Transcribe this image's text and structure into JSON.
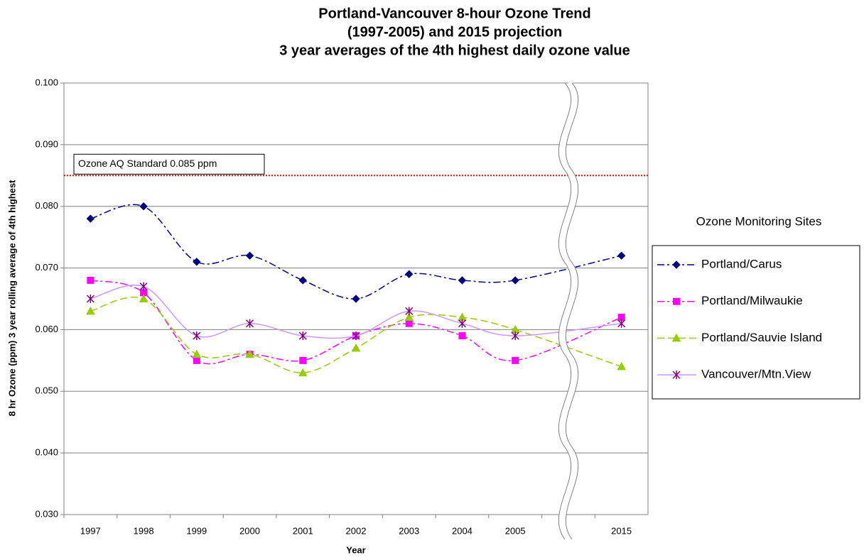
{
  "chart_data": {
    "type": "line",
    "title": [
      "Portland-Vancouver 8-hour Ozone Trend",
      "(1997-2005) and 2015 projection",
      "3 year averages of the 4th highest daily ozone value"
    ],
    "x_label": "Year",
    "y_label": "8 hr Ozone (ppm) 3 year rolling average of 4th highest",
    "legend_title": "Ozone Monitoring Sites",
    "legend": "right",
    "grid": true,
    "categories": [
      "1997",
      "1998",
      "1999",
      "2000",
      "2001",
      "2002",
      "2003",
      "2004",
      "2005",
      null,
      "2015"
    ],
    "ylim": [
      0.03,
      0.1
    ],
    "yticks": [
      {
        "value": 0.03,
        "label": "0.030"
      },
      {
        "value": 0.04,
        "label": "0.040"
      },
      {
        "value": 0.05,
        "label": "0.050"
      },
      {
        "value": 0.06,
        "label": "0.060"
      },
      {
        "value": 0.07,
        "label": "0.070"
      },
      {
        "value": 0.08,
        "label": "0.080"
      },
      {
        "value": 0.09,
        "label": "0.090"
      },
      {
        "value": 0.1,
        "label": "0.100"
      }
    ],
    "reference": {
      "label": "Ozone AQ Standard 0.085 ppm",
      "value": 0.085,
      "color": "#ff0000"
    },
    "series": [
      {
        "name": "Portland/Carus",
        "color": "#000080",
        "marker_color": "#000080",
        "marker": "diamond",
        "dash": "dashdot",
        "values": [
          0.078,
          0.08,
          0.071,
          0.072,
          0.068,
          0.065,
          0.069,
          0.068,
          0.068,
          null,
          0.072
        ]
      },
      {
        "name": "Portland/Milwaukie",
        "color": "#ff00ff",
        "marker_color": "#ff00ff",
        "marker": "square",
        "dash": "dashdot",
        "values": [
          0.068,
          0.066,
          0.055,
          0.056,
          0.055,
          0.059,
          0.061,
          0.059,
          0.055,
          null,
          0.062
        ]
      },
      {
        "name": "Portland/Sauvie Island",
        "color": "#99cc00",
        "marker_color": "#99cc00",
        "marker": "triangle",
        "dash": "dash",
        "values": [
          0.063,
          0.065,
          0.056,
          0.056,
          0.053,
          0.057,
          0.062,
          0.062,
          0.06,
          null,
          0.054
        ]
      },
      {
        "name": "Vancouver/Mtn.View",
        "color": "#cc99ff",
        "marker_color": "#800080",
        "marker": "star",
        "dash": "solid",
        "values": [
          0.065,
          0.067,
          0.059,
          0.061,
          0.059,
          0.059,
          0.063,
          0.061,
          0.059,
          null,
          0.061
        ]
      }
    ]
  }
}
